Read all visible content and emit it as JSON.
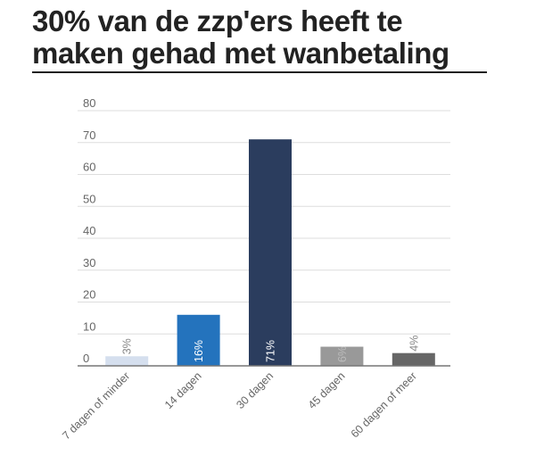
{
  "header": {
    "title": "30% van de zzp'ers heeft te maken gehad met wanbetaling"
  },
  "chart_data": {
    "type": "bar",
    "title": "30% van de zzp'ers heeft te maken gehad met wanbetaling",
    "xlabel": "",
    "ylabel": "",
    "ylim": [
      0,
      80
    ],
    "yticks": [
      0,
      10,
      20,
      30,
      40,
      50,
      60,
      70,
      80
    ],
    "grid": true,
    "categories": [
      "7 dagen of minder",
      "14 dagen",
      "30 dagen",
      "45 dagen",
      "60 dagen of meer"
    ],
    "values": [
      3,
      16,
      71,
      6,
      4
    ],
    "data_labels": [
      "3%",
      "16%",
      "71%",
      "6%",
      "4%"
    ],
    "colors": [
      "#d5dfee",
      "#2473bd",
      "#2b3d5e",
      "#999999",
      "#666666"
    ],
    "label_colors": [
      "#888888",
      "#ffffff",
      "#ffffff",
      "#bbbbbb",
      "#888888"
    ],
    "label_position": [
      "above",
      "inside",
      "inside",
      "inside",
      "above"
    ]
  }
}
